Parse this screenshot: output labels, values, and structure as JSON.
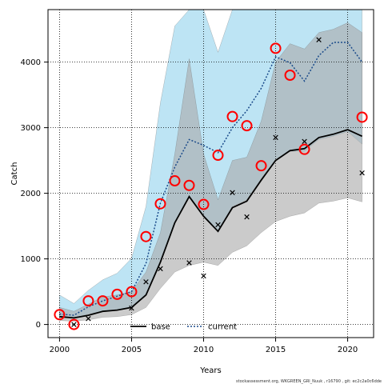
{
  "chart_data": {
    "type": "line",
    "title": "",
    "xlabel": "Years",
    "ylabel": "Catch",
    "xlim": [
      1999.2,
      2021.8
    ],
    "ylim": [
      -200,
      4800
    ],
    "xticks": [
      2000,
      2005,
      2010,
      2015,
      2020
    ],
    "yticks": [
      0,
      1000,
      2000,
      3000,
      4000
    ],
    "grid": true,
    "legend_position": "bottom-center",
    "credit": "stockassessment.org, WKGREEN_GRl_Nuuk , r16790 , git: ec2c2a0c6dde",
    "x": [
      2000,
      2001,
      2002,
      2003,
      2004,
      2005,
      2006,
      2007,
      2008,
      2009,
      2010,
      2011,
      2012,
      2013,
      2014,
      2015,
      2016,
      2017,
      2018,
      2019,
      2020,
      2021
    ],
    "series": [
      {
        "name": "base",
        "color": "#000000",
        "dash": "solid",
        "band_color": "#a9a9a9",
        "values": [
          120,
          100,
          140,
          200,
          220,
          260,
          450,
          950,
          1550,
          1950,
          1650,
          1420,
          1780,
          1880,
          2200,
          2500,
          2650,
          2680,
          2850,
          2900,
          2970,
          2870
        ],
        "lower": [
          60,
          50,
          70,
          110,
          120,
          150,
          260,
          550,
          800,
          900,
          950,
          900,
          1100,
          1200,
          1400,
          1570,
          1650,
          1700,
          1850,
          1880,
          1930,
          1870
        ],
        "upper": [
          260,
          200,
          310,
          420,
          450,
          500,
          800,
          1400,
          2600,
          4050,
          2600,
          1900,
          2500,
          2550,
          3100,
          4000,
          4280,
          4200,
          4450,
          4500,
          4600,
          4450
        ]
      },
      {
        "name": "current",
        "color": "#1a4a8a",
        "dash": "dotted",
        "band_color": "#87ceeb",
        "values": [
          160,
          140,
          270,
          360,
          430,
          500,
          930,
          1850,
          2400,
          2820,
          2730,
          2620,
          3000,
          3260,
          3600,
          4080,
          3990,
          3710,
          4100,
          4300,
          4300,
          4000
        ],
        "lower": [
          120,
          95,
          160,
          200,
          220,
          260,
          460,
          980,
          1560,
          1950,
          1660,
          1430,
          1800,
          1900,
          2220,
          2520,
          2640,
          2640,
          2820,
          2870,
          2940,
          2750
        ],
        "upper": [
          450,
          320,
          520,
          680,
          780,
          1010,
          1800,
          3380,
          4550,
          4800,
          4800,
          4150,
          4800,
          4800,
          4800,
          4800,
          4800,
          4800,
          4800,
          4800,
          4800,
          4800
        ]
      }
    ],
    "observed_catch_x": {
      "marker": "x",
      "x": [
        2001,
        2002,
        2005,
        2006,
        2007,
        2009,
        2010,
        2011,
        2012,
        2013,
        2015,
        2017,
        2018,
        2021
      ],
      "y": [
        0,
        90,
        250,
        650,
        850,
        940,
        740,
        1520,
        2010,
        1640,
        2850,
        2790,
        4340,
        2310
      ]
    },
    "observed_catch_circles": {
      "marker": "circle",
      "color": "#ff0000",
      "x": [
        2000,
        2001,
        2002,
        2003,
        2004,
        2005,
        2006,
        2007,
        2008,
        2009,
        2010,
        2011,
        2012,
        2013,
        2014,
        2015,
        2016,
        2017,
        2021
      ],
      "y": [
        150,
        0,
        360,
        360,
        460,
        500,
        1340,
        1840,
        2190,
        2120,
        1830,
        2580,
        3170,
        3030,
        2420,
        4210,
        3800,
        2670,
        3160
      ]
    }
  }
}
